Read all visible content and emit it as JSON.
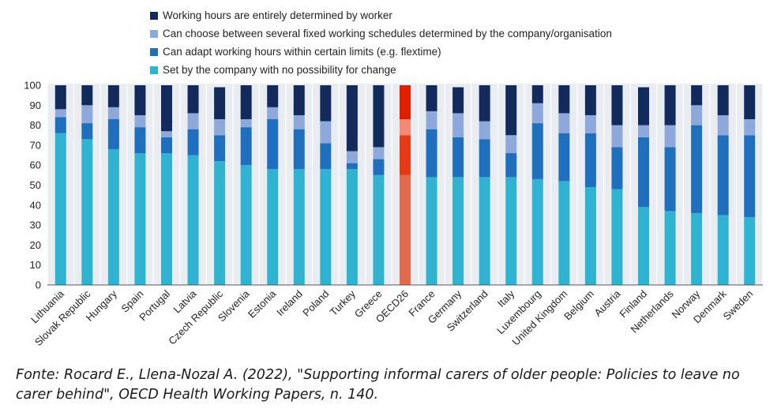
{
  "chart_data": {
    "type": "bar",
    "stacked": true,
    "categories": [
      "Lithuania",
      "Slovak Republic",
      "Hungary",
      "Spain",
      "Portugal",
      "Latvia",
      "Czech Republic",
      "Slovenia",
      "Estonia",
      "Ireland",
      "Poland",
      "Turkey",
      "Greece",
      "OECD26",
      "France",
      "Germany",
      "Switzerland",
      "Italy",
      "Luxembourg",
      "United Kingdom",
      "Belgium",
      "Austria",
      "Finland",
      "Netherlands",
      "Norway",
      "Denmark",
      "Sweden"
    ],
    "series": [
      {
        "name": "Set by the company with no possibility for change",
        "color": "#2fb3d0",
        "values": [
          76,
          73,
          68,
          66,
          66,
          65,
          62,
          60,
          58,
          58,
          58,
          58,
          55,
          55,
          54,
          54,
          54,
          54,
          53,
          52,
          49,
          48,
          39,
          37,
          36,
          35,
          34
        ]
      },
      {
        "name": "Can adapt working hours within certain limits (e.g. flextime)",
        "color": "#1f6fbf",
        "values": [
          8,
          8,
          15,
          13,
          8,
          13,
          13,
          19,
          25,
          20,
          13,
          3,
          8,
          20,
          24,
          20,
          19,
          12,
          28,
          24,
          27,
          21,
          35,
          32,
          44,
          40,
          41
        ]
      },
      {
        "name": "Can choose between several fixed working schedules determined by the company/organisation",
        "color": "#8da9dc",
        "values": [
          4,
          9,
          6,
          6,
          3,
          8,
          8,
          4,
          6,
          7,
          11,
          6,
          6,
          8,
          9,
          12,
          9,
          9,
          10,
          10,
          9,
          11,
          6,
          11,
          10,
          10,
          8
        ]
      },
      {
        "name": "Working hours are entirely determined by worker",
        "color": "#122a5c",
        "values": [
          12,
          10,
          11,
          15,
          23,
          14,
          16,
          17,
          11,
          15,
          18,
          33,
          31,
          17,
          13,
          13,
          18,
          25,
          9,
          14,
          15,
          20,
          19,
          20,
          10,
          15,
          17
        ]
      }
    ],
    "highlight": {
      "category": "OECD26",
      "colors": [
        "#e06a4e",
        "#e43a16",
        "#f08c74",
        "#e01e00"
      ]
    },
    "legend_order": [
      3,
      2,
      1,
      0
    ],
    "ylim": [
      0,
      100
    ],
    "yticks": [
      0,
      10,
      20,
      30,
      40,
      50,
      60,
      70,
      80,
      90,
      100
    ],
    "grid": true,
    "legend_position": "top"
  },
  "source_note": "Fonte: Rocard E., Llena-Nozal A. (2022), \"Supporting informal carers of older people: Policies to leave no carer behind\", OECD Health Working Papers, n. 140."
}
